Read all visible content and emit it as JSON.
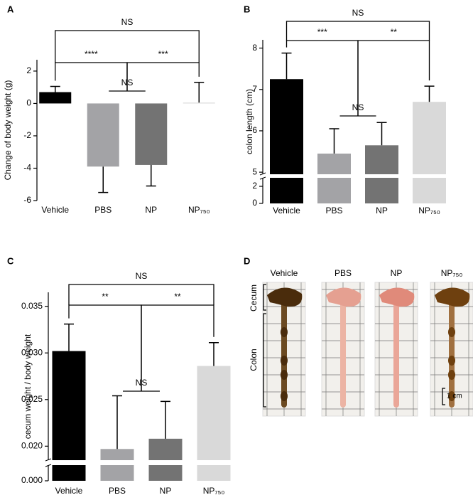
{
  "chart_data": [
    {
      "type": "bar",
      "panel": "A",
      "ylabel": "Change of body weight (g)",
      "categories": [
        "Vehicle",
        "PBS",
        "NP",
        "NP₇₅₀"
      ],
      "values": [
        0.7,
        -3.9,
        -3.8,
        0.05
      ],
      "errors": [
        0.35,
        1.6,
        1.3,
        1.25
      ],
      "colors": [
        "#000000",
        "#a3a3a6",
        "#737373",
        "#d9d9d9"
      ],
      "ylim": [
        -6,
        2.7
      ],
      "yticks": [
        -6,
        -4,
        -2,
        0,
        2
      ],
      "comparisons": [
        {
          "label": "NS",
          "left": [
            "PBS"
          ],
          "right": [
            "NP"
          ]
        },
        {
          "label": "****",
          "left": [
            "Vehicle"
          ],
          "right": [
            "PBS",
            "NP"
          ]
        },
        {
          "label": "***",
          "left": [
            "PBS",
            "NP"
          ],
          "right": [
            "NP₇₅₀"
          ]
        },
        {
          "label": "NS",
          "left": [
            "Vehicle"
          ],
          "right": [
            "NP₇₅₀"
          ]
        }
      ]
    },
    {
      "type": "bar",
      "panel": "B",
      "ylabel": "colon length (cm)",
      "categories": [
        "Vehicle",
        "PBS",
        "NP",
        "NP₇₅₀"
      ],
      "values": [
        7.25,
        5.45,
        5.65,
        6.7
      ],
      "errors": [
        0.63,
        0.6,
        0.55,
        0.38
      ],
      "colors": [
        "#000000",
        "#a3a3a6",
        "#737373",
        "#d9d9d9"
      ],
      "ylim": [
        4.95,
        8.2
      ],
      "yticks": [
        5,
        6,
        7,
        8
      ],
      "lower_ylim": [
        0,
        3
      ],
      "lower_yticks": [
        0,
        2
      ],
      "comparisons": [
        {
          "label": "NS",
          "left": [
            "PBS"
          ],
          "right": [
            "NP"
          ]
        },
        {
          "label": "***",
          "left": [
            "Vehicle"
          ],
          "right": [
            "PBS",
            "NP"
          ]
        },
        {
          "label": "**",
          "left": [
            "PBS",
            "NP"
          ],
          "right": [
            "NP₇₅₀"
          ]
        },
        {
          "label": "NS",
          "left": [
            "Vehicle"
          ],
          "right": [
            "NP₇₅₀"
          ]
        }
      ]
    },
    {
      "type": "bar",
      "panel": "C",
      "ylabel": "cecum weight / body weight",
      "categories": [
        "Vehicle",
        "PBS",
        "NP",
        "NP₇₅₀"
      ],
      "values": [
        0.0302,
        0.0197,
        0.0208,
        0.0286
      ],
      "errors": [
        0.0029,
        0.0057,
        0.004,
        0.0025
      ],
      "colors": [
        "#000000",
        "#a3a3a6",
        "#737373",
        "#d9d9d9"
      ],
      "ylim": [
        0.0185,
        0.0365
      ],
      "yticks": [
        {
          "value": 0.02,
          "label": "0.020"
        },
        {
          "value": 0.025,
          "label": "0.025"
        },
        {
          "value": 0.03,
          "label": "0.030"
        },
        {
          "value": 0.035,
          "label": "0.035"
        }
      ],
      "lower_ylim": [
        0,
        0.0015
      ],
      "lower_yticks": [
        {
          "value": 0,
          "label": "0.000"
        }
      ],
      "comparisons": [
        {
          "label": "NS",
          "left": [
            "PBS"
          ],
          "right": [
            "NP"
          ]
        },
        {
          "label": "**",
          "left": [
            "Vehicle"
          ],
          "right": [
            "PBS",
            "NP"
          ]
        },
        {
          "label": "**",
          "left": [
            "PBS",
            "NP"
          ],
          "right": [
            "NP₇₅₀"
          ]
        },
        {
          "label": "NS",
          "left": [
            "Vehicle"
          ],
          "right": [
            "NP₇₅₀"
          ]
        }
      ]
    },
    {
      "type": "image",
      "panel": "D",
      "categories": [
        "Vehicle",
        "PBS",
        "NP",
        "NP₇₅₀"
      ],
      "regions": [
        "Cecum",
        "Colon"
      ],
      "scale_bar": "1 cm"
    }
  ]
}
